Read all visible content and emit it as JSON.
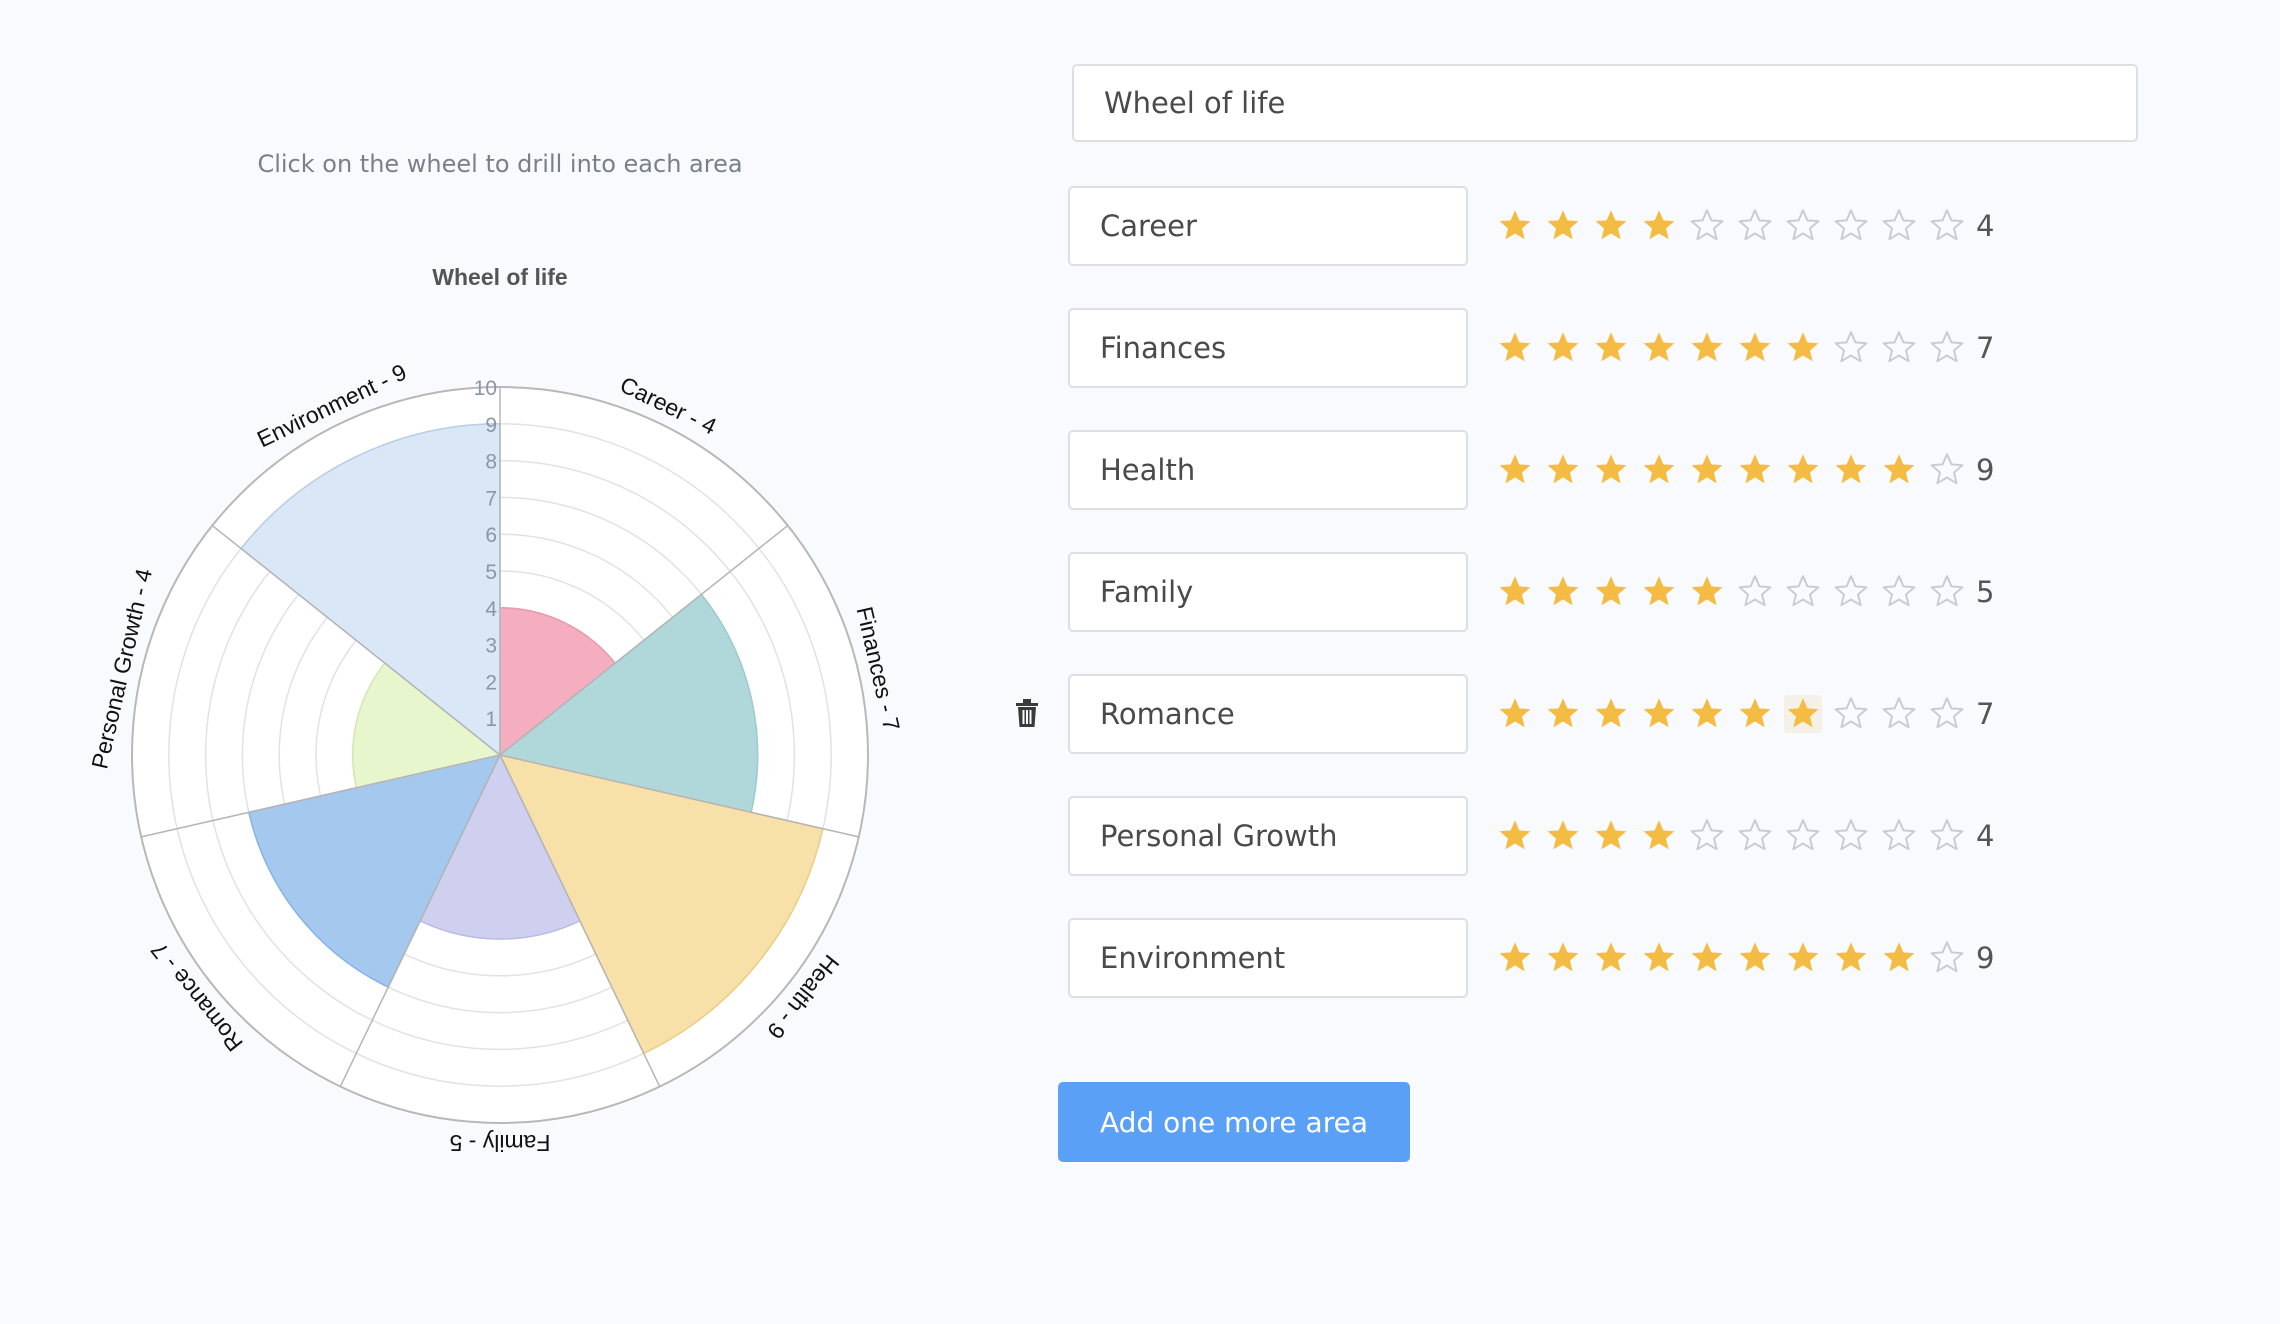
{
  "hint": "Click on the wheel to drill into each area",
  "title_field": {
    "value": "Wheel of life",
    "placeholder": "Wheel of life"
  },
  "add_button_label": "Add one more area",
  "max_rating": 10,
  "colors": {
    "star_filled": "#f4bc42",
    "star_empty_stroke": "#c9ccd2",
    "button": "#5aa0f7"
  },
  "areas": [
    {
      "name": "Career",
      "rating": 4
    },
    {
      "name": "Finances",
      "rating": 7
    },
    {
      "name": "Health",
      "rating": 9
    },
    {
      "name": "Family",
      "rating": 5
    },
    {
      "name": "Romance",
      "rating": 7
    },
    {
      "name": "Personal Growth",
      "rating": 4
    },
    {
      "name": "Environment",
      "rating": 9
    }
  ],
  "chart_data": {
    "type": "polar-area",
    "title": "Wheel of life",
    "categories": [
      "Career - 4",
      "Finances - 7",
      "Health - 9",
      "Family - 5",
      "Romance - 7",
      "Personal Growth - 4",
      "Environment - 9"
    ],
    "values": [
      4,
      7,
      9,
      5,
      7,
      4,
      9
    ],
    "rlim": [
      0,
      10
    ],
    "radial_ticks": [
      "1",
      "2",
      "3",
      "4",
      "5",
      "6",
      "7",
      "8",
      "9",
      "10"
    ],
    "colors": [
      "#f4aebf",
      "#b0d8db",
      "#f8e1a8",
      "#cfd0f0",
      "#a5c8ef",
      "#e8f6cd",
      "#dae7f7"
    ],
    "edge_colors": [
      "#e89aaa",
      "#9acbcf",
      "#ebcd86",
      "#b9bbe6",
      "#86b3e6",
      "#d3e7b0",
      "#b9cde4"
    ],
    "grid": true
  }
}
